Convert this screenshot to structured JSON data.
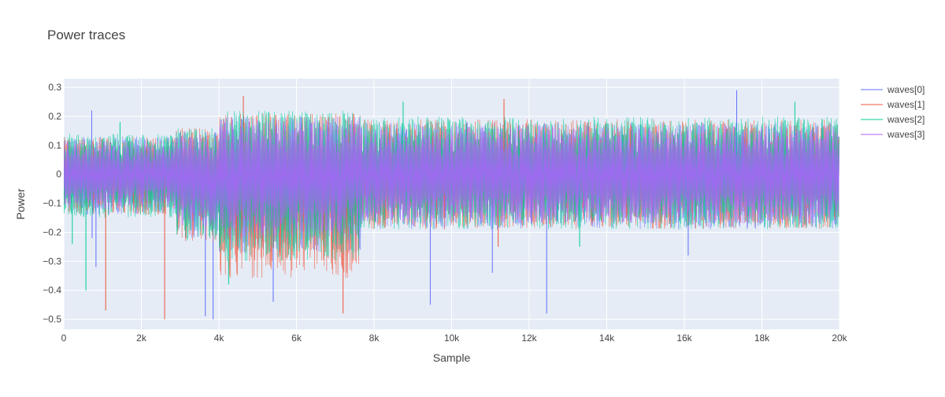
{
  "chart_data": {
    "type": "line",
    "title": "Power traces",
    "xlabel": "Sample",
    "ylabel": "Power",
    "xlim": [
      0,
      20000
    ],
    "ylim": [
      -0.535,
      0.33
    ],
    "x_ticks": [
      0,
      2000,
      4000,
      6000,
      8000,
      10000,
      12000,
      14000,
      16000,
      18000,
      20000
    ],
    "x_tick_labels": [
      "0",
      "2k",
      "4k",
      "6k",
      "8k",
      "10k",
      "12k",
      "14k",
      "16k",
      "18k",
      "20k"
    ],
    "y_ticks": [
      -0.5,
      -0.4,
      -0.3,
      -0.2,
      -0.1,
      0,
      0.1,
      0.2,
      0.3
    ],
    "y_tick_labels": [
      "−0.5",
      "−0.4",
      "−0.3",
      "−0.2",
      "−0.1",
      "0",
      "0.1",
      "0.2",
      "0.3"
    ],
    "grid": true,
    "legend_position": "top-right",
    "plot_background": "#e5ecf6",
    "series": [
      {
        "name": "waves[0]",
        "color": "#636efa",
        "segments": [
          {
            "from": 0,
            "to": 2900,
            "low": -0.14,
            "high": 0.13
          },
          {
            "from": 2900,
            "to": 4000,
            "low": -0.22,
            "high": 0.15
          },
          {
            "from": 4000,
            "to": 7650,
            "low": -0.27,
            "high": 0.2
          },
          {
            "from": 7650,
            "to": 20000,
            "low": -0.19,
            "high": 0.18
          }
        ],
        "spikes": [
          {
            "x": 720,
            "y": 0.22
          },
          {
            "x": 730,
            "y": -0.22
          },
          {
            "x": 830,
            "y": -0.32
          },
          {
            "x": 3650,
            "y": -0.49
          },
          {
            "x": 3850,
            "y": -0.5
          },
          {
            "x": 5400,
            "y": -0.44
          },
          {
            "x": 9450,
            "y": -0.45
          },
          {
            "x": 11050,
            "y": -0.34
          },
          {
            "x": 12450,
            "y": -0.48
          },
          {
            "x": 16100,
            "y": -0.28
          },
          {
            "x": 17350,
            "y": 0.29
          }
        ]
      },
      {
        "name": "waves[1]",
        "color": "#ef553b",
        "segments": [
          {
            "from": 0,
            "to": 2900,
            "low": -0.14,
            "high": 0.13
          },
          {
            "from": 2900,
            "to": 4000,
            "low": -0.24,
            "high": 0.16
          },
          {
            "from": 4000,
            "to": 7650,
            "low": -0.36,
            "high": 0.21
          },
          {
            "from": 7650,
            "to": 20000,
            "low": -0.19,
            "high": 0.19
          }
        ],
        "spikes": [
          {
            "x": 1080,
            "y": -0.47
          },
          {
            "x": 2600,
            "y": -0.5
          },
          {
            "x": 4630,
            "y": 0.27
          },
          {
            "x": 7200,
            "y": -0.48
          },
          {
            "x": 11350,
            "y": 0.26
          },
          {
            "x": 11200,
            "y": -0.25
          }
        ]
      },
      {
        "name": "waves[2]",
        "color": "#00cc96",
        "segments": [
          {
            "from": 0,
            "to": 2900,
            "low": -0.15,
            "high": 0.14
          },
          {
            "from": 2900,
            "to": 4000,
            "low": -0.23,
            "high": 0.16
          },
          {
            "from": 4000,
            "to": 7650,
            "low": -0.3,
            "high": 0.22
          },
          {
            "from": 7650,
            "to": 20000,
            "low": -0.19,
            "high": 0.2
          }
        ],
        "spikes": [
          {
            "x": 220,
            "y": -0.24
          },
          {
            "x": 570,
            "y": -0.4
          },
          {
            "x": 1450,
            "y": 0.18
          },
          {
            "x": 4250,
            "y": -0.38
          },
          {
            "x": 8750,
            "y": 0.25
          },
          {
            "x": 13300,
            "y": -0.25
          },
          {
            "x": 18850,
            "y": 0.25
          }
        ]
      },
      {
        "name": "waves[3]",
        "color": "#ab63fa",
        "segments": [
          {
            "from": 0,
            "to": 2900,
            "low": -0.12,
            "high": 0.12
          },
          {
            "from": 2900,
            "to": 4000,
            "low": -0.18,
            "high": 0.14
          },
          {
            "from": 4000,
            "to": 7650,
            "low": -0.22,
            "high": 0.2
          },
          {
            "from": 7650,
            "to": 20000,
            "low": -0.17,
            "high": 0.17
          }
        ],
        "spikes": []
      }
    ]
  }
}
